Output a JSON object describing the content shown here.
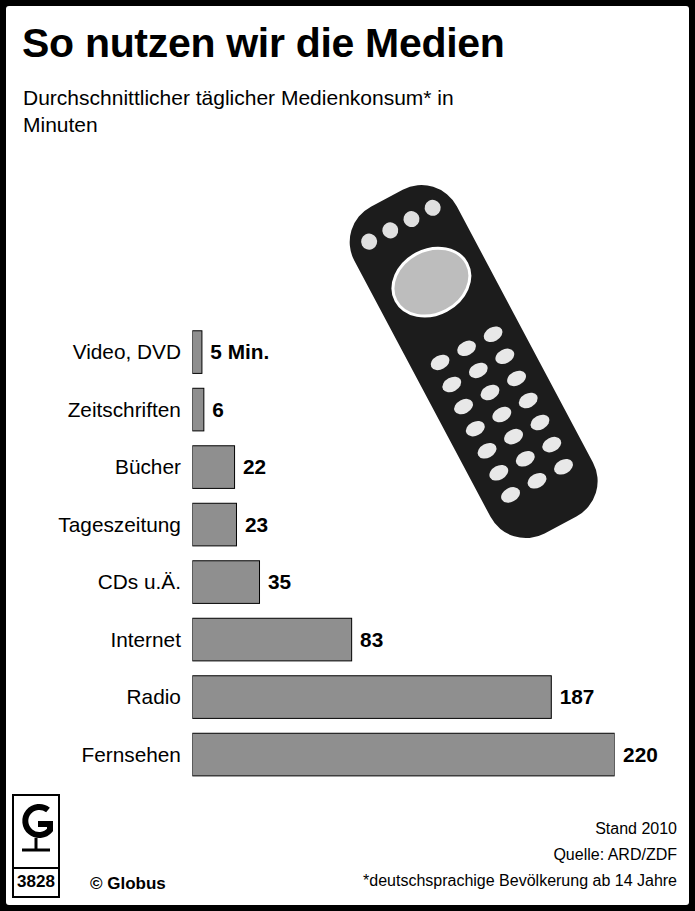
{
  "chart_data": {
    "type": "bar",
    "orientation": "horizontal",
    "title": "So nutzen wir die Medien",
    "subtitle": "Durchschnittlicher täglicher Medienkonsum* in Minuten",
    "categories": [
      "Video, DVD",
      "Zeitschriften",
      "Bücher",
      "Tageszeitung",
      "CDs u.Ä.",
      "Internet",
      "Radio",
      "Fernsehen"
    ],
    "values": [
      5,
      6,
      22,
      23,
      35,
      83,
      187,
      220
    ],
    "value_labels": [
      "5 Min.",
      "6",
      "22",
      "23",
      "35",
      "83",
      "187",
      "220"
    ],
    "data_labels": true,
    "tick_labels": "y",
    "color": "#8f8f8f",
    "notes": [
      "Stand 2010",
      "Quelle: ARD/ZDF",
      "*deutschsprachige Bevölkerung ab 14 Jahre"
    ],
    "credit": "© Globus",
    "logo_number": "3828"
  }
}
